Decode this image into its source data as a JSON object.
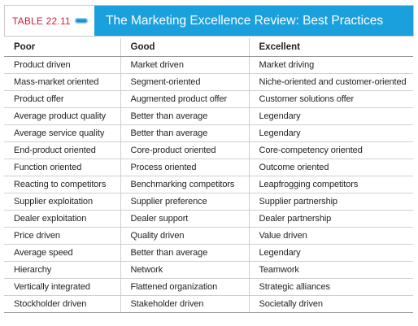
{
  "table_label": "TABLE 22.11",
  "tab_icon": "tab-icon",
  "title": "The Marketing Excellence Review: Best Practices",
  "colors": {
    "label": "#d21f3c",
    "title_background": "#1aa0dd"
  },
  "columns": [
    "Poor",
    "Good",
    "Excellent"
  ],
  "rows": [
    [
      "Product driven",
      "Market driven",
      "Market driving"
    ],
    [
      "Mass-market oriented",
      "Segment-oriented",
      "Niche-oriented and customer-oriented"
    ],
    [
      "Product offer",
      "Augmented product offer",
      "Customer solutions offer"
    ],
    [
      "Average product quality",
      "Better than average",
      "Legendary"
    ],
    [
      "Average service quality",
      "Better than average",
      "Legendary"
    ],
    [
      "End-product oriented",
      "Core-product oriented",
      "Core-competency oriented"
    ],
    [
      "Function oriented",
      "Process oriented",
      "Outcome oriented"
    ],
    [
      "Reacting to competitors",
      "Benchmarking competitors",
      "Leapfrogging competitors"
    ],
    [
      "Supplier exploitation",
      "Supplier preference",
      "Supplier partnership"
    ],
    [
      "Dealer exploitation",
      "Dealer support",
      "Dealer partnership"
    ],
    [
      "Price driven",
      "Quality driven",
      "Value driven"
    ],
    [
      "Average speed",
      "Better than average",
      "Legendary"
    ],
    [
      "Hierarchy",
      "Network",
      "Teamwork"
    ],
    [
      "Vertically integrated",
      "Flattened organization",
      "Strategic alliances"
    ],
    [
      "Stockholder driven",
      "Stakeholder driven",
      "Societally driven"
    ]
  ]
}
